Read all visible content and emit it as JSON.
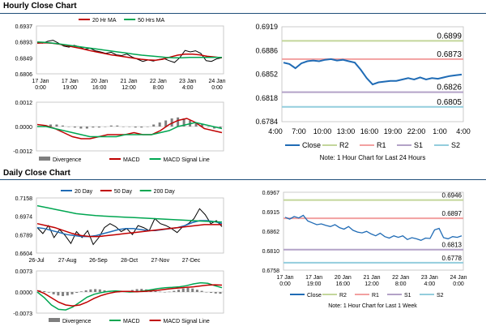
{
  "sections": {
    "hourly_title": "Hourly Close Chart",
    "daily_title": "Daily Close Chart"
  },
  "colors": {
    "close": "#000000",
    "ma20": "#c00000",
    "ma50": "#00a651",
    "divergence": "#7f7f7f",
    "macd": "#c00000",
    "signal": "#00a651",
    "blue": "#1f6bb5",
    "r2": "#c3d69b",
    "r1": "#f2a0a0",
    "s1": "#b3a2c7",
    "s2": "#93cddd"
  },
  "chart_data": [
    {
      "id": "hourly_price",
      "type": "line",
      "legend": [
        "20 Hr MA",
        "50 Hrs MA"
      ],
      "y_ticks": [
        "0.6937",
        "0.6893",
        "0.6849",
        "0.6806"
      ],
      "ylim": [
        0.6806,
        0.6937
      ],
      "x_ticks": [
        [
          "17 Jan",
          "0:00"
        ],
        [
          "17 Jan",
          "19:00"
        ],
        [
          "20 Jan",
          "16:00"
        ],
        [
          "21 Jan",
          "12:00"
        ],
        [
          "22 Jan",
          "8:00"
        ],
        [
          "23 Jan",
          "4:00"
        ],
        [
          "24 Jan",
          "0:00"
        ]
      ],
      "series": [
        {
          "name": "Close",
          "values": [
            0.6892,
            0.689,
            0.6895,
            0.6898,
            0.689,
            0.6882,
            0.6879,
            0.6884,
            0.688,
            0.6873,
            0.6876,
            0.6869,
            0.6866,
            0.6862,
            0.6865,
            0.6858,
            0.6856,
            0.686,
            0.6852,
            0.6846,
            0.684,
            0.6844,
            0.6841,
            0.6845,
            0.6848,
            0.6842,
            0.6837,
            0.685,
            0.687,
            0.6866,
            0.6869,
            0.6862,
            0.6842,
            0.684,
            0.6847,
            0.685
          ]
        },
        {
          "name": "20 Hr MA",
          "values": [
            0.689,
            0.6891,
            0.689,
            0.6887,
            0.6883,
            0.6879,
            0.6875,
            0.687,
            0.6866,
            0.6862,
            0.6858,
            0.6855,
            0.6852,
            0.6849,
            0.6846,
            0.6844,
            0.6843,
            0.6846,
            0.6852,
            0.6857,
            0.686,
            0.686,
            0.6858,
            0.6854,
            0.6852,
            0.685
          ]
        },
        {
          "name": "50 Hrs MA",
          "values": [
            0.6893,
            0.6892,
            0.689,
            0.6887,
            0.6884,
            0.6881,
            0.6878,
            0.6875,
            0.6872,
            0.6869,
            0.6866,
            0.6863,
            0.686,
            0.6857,
            0.6855,
            0.6853,
            0.6851,
            0.685,
            0.685,
            0.6851,
            0.6851,
            0.6851,
            0.6851,
            0.6851
          ]
        }
      ]
    },
    {
      "id": "hourly_macd",
      "type": "bar",
      "y_ticks": [
        "0.0012",
        "0.0000",
        "-0.0012"
      ],
      "ylim": [
        -0.0012,
        0.0012
      ],
      "legend": [
        "Divergence",
        "MACD",
        "MACD Signal Line"
      ],
      "series": [
        {
          "name": "Divergence",
          "values": [
            5e-05,
            0.0001,
            0.0001,
            5e-05,
            0.0,
            -5e-05,
            -0.0001,
            -0.0001,
            -5e-05,
            -5e-05,
            0.0,
            5e-05,
            5e-05,
            0.0,
            0.0,
            -5e-05,
            -5e-05,
            0.0,
            0.0001,
            0.0002,
            0.0003,
            0.0004,
            0.00045,
            0.0004,
            0.0003,
            0.0002,
            0.0001,
            0.0,
            -0.0001,
            -0.0001
          ]
        },
        {
          "name": "MACD",
          "values": [
            0.0001,
            5e-05,
            -0.0001,
            -0.0003,
            -0.0005,
            -0.0006,
            -0.0006,
            -0.0005,
            -0.0004,
            -0.0004,
            -0.0004,
            -0.0003,
            -0.0004,
            -0.0004,
            -0.0002,
            0.0001,
            0.0003,
            0.0004,
            0.0002,
            -0.0001,
            -0.0002,
            -0.0003
          ]
        },
        {
          "name": "MACD Signal Line",
          "values": [
            0.0,
            0.0,
            -0.0001,
            -0.0002,
            -0.0003,
            -0.0004,
            -0.0005,
            -0.0005,
            -0.0005,
            -0.0005,
            -0.0004,
            -0.0004,
            -0.0004,
            -0.0004,
            -0.0003,
            -0.0002,
            0.0,
            0.0001,
            0.0002,
            0.0001,
            0.0,
            -0.0001
          ]
        }
      ]
    },
    {
      "id": "hourly_pivots",
      "type": "line",
      "y_ticks": [
        "0.6919",
        "0.6886",
        "0.6852",
        "0.6818",
        "0.6784"
      ],
      "ylim": [
        0.6784,
        0.6919
      ],
      "x_ticks": [
        "4:00",
        "7:00",
        "10:00",
        "13:00",
        "16:00",
        "19:00",
        "22:00",
        "1:00",
        "4:00"
      ],
      "levels": [
        {
          "name": "R2",
          "value": 0.6899,
          "label": "0.6899"
        },
        {
          "name": "R1",
          "value": 0.6873,
          "label": "0.6873"
        },
        {
          "name": "S1",
          "value": 0.6826,
          "label": "0.6826"
        },
        {
          "name": "S2",
          "value": 0.6805,
          "label": "0.6805"
        }
      ],
      "series": [
        {
          "name": "Close",
          "values": [
            0.6868,
            0.6866,
            0.686,
            0.6867,
            0.687,
            0.6871,
            0.687,
            0.6872,
            0.6873,
            0.6871,
            0.6872,
            0.687,
            0.6868,
            0.6858,
            0.6846,
            0.6837,
            0.684,
            0.6841,
            0.6842,
            0.6842,
            0.6844,
            0.6846,
            0.6844,
            0.6847,
            0.6844,
            0.6846,
            0.6845,
            0.6847,
            0.6849,
            0.685,
            0.6851
          ]
        }
      ],
      "legend": [
        "Close",
        "R2",
        "R1",
        "S1",
        "S2"
      ],
      "note": "Note: 1 Hour Chart for Last 24 Hours"
    },
    {
      "id": "daily_price",
      "type": "line",
      "legend": [
        "20 Day",
        "50 Day",
        "200 Day"
      ],
      "y_ticks": [
        "0.7158",
        "0.6974",
        "0.6789",
        "0.6604"
      ],
      "ylim": [
        0.6604,
        0.7158
      ],
      "x_ticks": [
        "26-Jul",
        "27-Aug",
        "26-Sep",
        "28-Oct",
        "27-Nov",
        "27-Dec"
      ],
      "series": [
        {
          "name": "Close",
          "values": [
            0.686,
            0.68,
            0.688,
            0.676,
            0.684,
            0.678,
            0.67,
            0.682,
            0.676,
            0.683,
            0.669,
            0.676,
            0.686,
            0.69,
            0.687,
            0.682,
            0.685,
            0.679,
            0.688,
            0.686,
            0.683,
            0.695,
            0.69,
            0.688,
            0.685,
            0.681,
            0.687,
            0.69,
            0.695,
            0.705,
            0.699,
            0.69,
            0.693,
            0.687
          ]
        },
        {
          "name": "20 Day",
          "values": [
            0.686,
            0.685,
            0.683,
            0.681,
            0.679,
            0.678,
            0.677,
            0.677,
            0.678,
            0.68,
            0.682,
            0.684,
            0.685,
            0.685,
            0.684,
            0.683,
            0.683,
            0.684,
            0.685,
            0.686,
            0.688,
            0.691,
            0.693,
            0.693,
            0.692,
            0.69
          ]
        },
        {
          "name": "50 Day",
          "values": [
            0.69,
            0.688,
            0.686,
            0.683,
            0.68,
            0.678,
            0.677,
            0.677,
            0.678,
            0.679,
            0.68,
            0.681,
            0.682,
            0.683,
            0.684,
            0.685,
            0.686,
            0.687,
            0.688,
            0.689,
            0.689,
            0.689
          ]
        },
        {
          "name": "200 Day",
          "values": [
            0.708,
            0.706,
            0.704,
            0.702,
            0.7,
            0.699,
            0.698,
            0.6975,
            0.697,
            0.6965,
            0.696,
            0.6955,
            0.695,
            0.6945,
            0.694,
            0.6935,
            0.693,
            0.6925,
            0.692,
            0.6915
          ]
        }
      ]
    },
    {
      "id": "daily_macd",
      "type": "bar",
      "y_ticks": [
        "0.0073",
        "0.0000",
        "-0.0073"
      ],
      "ylim": [
        -0.0073,
        0.0073
      ],
      "legend": [
        "Divergence",
        "MACD",
        "MACD Signal Line"
      ],
      "series": [
        {
          "name": "Divergence",
          "values": [
            0.0006,
            0.0003,
            -0.0002,
            -0.0008,
            -0.0012,
            -0.0014,
            -0.0012,
            -0.0008,
            -0.0003,
            0.0002,
            0.0006,
            0.0009,
            0.001,
            0.0009,
            0.0006,
            0.0003,
            0.0001,
            -0.0001,
            0.0001,
            0.0004,
            0.0007,
            0.001,
            0.0011,
            0.0009,
            0.0006,
            0.0003,
            0.0001,
            -0.0001,
            0.0001,
            0.0004,
            0.0008,
            0.0012,
            0.0014,
            0.0012,
            0.0008,
            0.0004,
            0.0,
            -0.0003,
            -0.0005,
            -0.0006
          ]
        },
        {
          "name": "MACD",
          "values": [
            0.0,
            -0.002,
            -0.0045,
            -0.006,
            -0.0062,
            -0.0052,
            -0.0035,
            -0.0018,
            -0.0008,
            -0.0002,
            0.0002,
            0.0004,
            0.0002,
            0.0,
            0.0001,
            0.0004,
            0.0008,
            0.0012,
            0.0015,
            0.0016,
            0.0018,
            0.0022,
            0.0028,
            0.0032,
            0.003,
            0.0022,
            0.0015
          ]
        },
        {
          "name": "MACD Signal Line",
          "values": [
            0.0005,
            -0.0005,
            -0.002,
            -0.0035,
            -0.0045,
            -0.0048,
            -0.0045,
            -0.0035,
            -0.0022,
            -0.0012,
            -0.0005,
            0.0,
            0.0002,
            0.0002,
            0.0001,
            0.0002,
            0.0004,
            0.0006,
            0.0009,
            0.0012,
            0.0014,
            0.0016,
            0.0018,
            0.0021,
            0.0024,
            0.0025,
            0.0024
          ]
        }
      ]
    },
    {
      "id": "daily_pivots",
      "type": "line",
      "y_ticks": [
        "0.6967",
        "0.6915",
        "0.6862",
        "0.6810",
        "0.6758"
      ],
      "ylim": [
        0.6758,
        0.6967
      ],
      "x_ticks": [
        [
          "17 Jan",
          "0:00"
        ],
        [
          "17 Jan",
          "19:00"
        ],
        [
          "20 Jan",
          "16:00"
        ],
        [
          "21 Jan",
          "12:00"
        ],
        [
          "22 Jan",
          "8:00"
        ],
        [
          "23 Jan",
          "4:00"
        ],
        [
          "24 Jan",
          "0:00"
        ]
      ],
      "levels": [
        {
          "name": "R2",
          "value": 0.6946,
          "label": "0.6946"
        },
        {
          "name": "R1",
          "value": 0.6897,
          "label": "0.6897"
        },
        {
          "name": "S1",
          "value": 0.6813,
          "label": "0.6813"
        },
        {
          "name": "S2",
          "value": 0.6778,
          "label": "0.6778"
        }
      ],
      "series": [
        {
          "name": "Close",
          "values": [
            0.69,
            0.6895,
            0.6902,
            0.6898,
            0.6905,
            0.689,
            0.6885,
            0.688,
            0.6882,
            0.6878,
            0.6875,
            0.688,
            0.6872,
            0.6868,
            0.6875,
            0.6865,
            0.686,
            0.6858,
            0.6862,
            0.6855,
            0.685,
            0.6857,
            0.6848,
            0.6844,
            0.685,
            0.6846,
            0.685,
            0.684,
            0.6845,
            0.6842,
            0.6838,
            0.6844,
            0.6843,
            0.6866,
            0.687,
            0.6845,
            0.6842,
            0.6848,
            0.6846,
            0.685
          ]
        }
      ],
      "legend": [
        "Close",
        "R2",
        "R1",
        "S1",
        "S2"
      ],
      "note": "Note: 1 Hour Chart for Last 1 Week"
    }
  ]
}
